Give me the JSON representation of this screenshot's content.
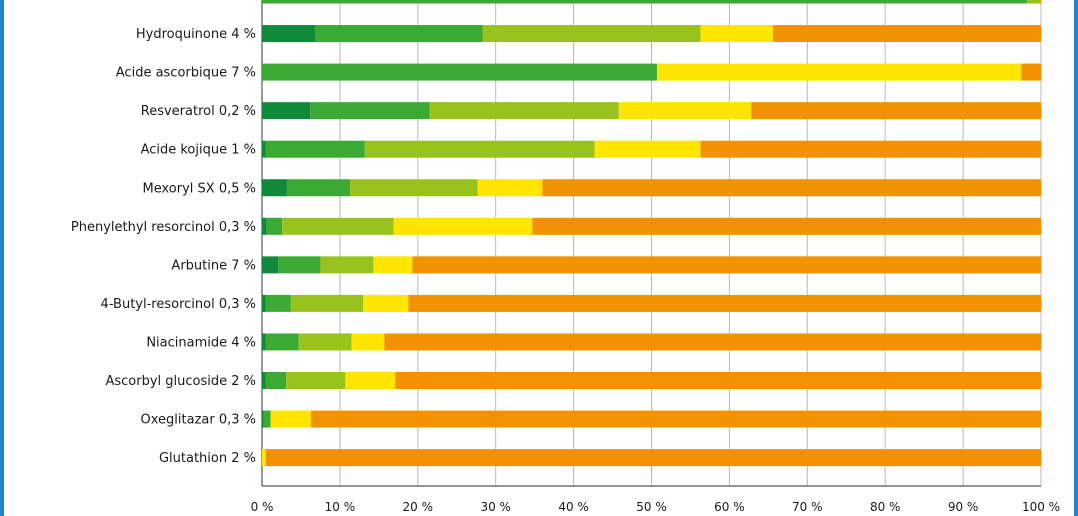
{
  "chart_data": {
    "type": "bar",
    "orientation": "horizontal",
    "stacked": true,
    "categories": [
      "",
      "Hydroquinone 4 %",
      "Acide ascorbique 7 %",
      "Resveratrol 0,2 %",
      "Acide kojique 1 %",
      "Mexoryl SX 0,5 %",
      "Phenylethyl resorcinol 0,3 %",
      "Arbutine 7 %",
      "4-Butyl-resorcinol 0,3 %",
      "Niacinamide 4 %",
      "Ascorbyl glucoside 2 %",
      "Oxeglitazar 0,3 %",
      "Glutathion 2 %"
    ],
    "series": [
      {
        "color": "#0f8a3a",
        "values": [
          0,
          6.8,
          0,
          6.2,
          0.5,
          3.2,
          0.6,
          2.1,
          0.5,
          0.5,
          0.5,
          0.2,
          0
        ]
      },
      {
        "color": "#3aaa35",
        "values": [
          98.2,
          21.5,
          50.7,
          15.3,
          12.7,
          8.1,
          2,
          5.4,
          3.2,
          4.2,
          2.6,
          0.9,
          0
        ]
      },
      {
        "color": "#97c31c",
        "values": [
          1.6,
          28,
          0,
          24.3,
          29.5,
          16.4,
          14.3,
          6.8,
          9.3,
          6.8,
          7.6,
          0,
          0
        ]
      },
      {
        "color": "#ffe500",
        "values": [
          0,
          9.3,
          46.8,
          17,
          13.6,
          8.3,
          17.8,
          5,
          5.8,
          4.2,
          6.4,
          5.2,
          0.5
        ]
      },
      {
        "color": "#f39200",
        "values": [
          0.2,
          34.4,
          2.5,
          37.2,
          43.7,
          64,
          65.3,
          80.7,
          81.2,
          84.3,
          82.9,
          93.7,
          99.5
        ]
      }
    ],
    "x_ticks": [
      "0 %",
      "10 %",
      "20 %",
      "30 %",
      "40 %",
      "50 %",
      "60 %",
      "70 %",
      "80 %",
      "90 %",
      "100 %"
    ],
    "xlim": [
      0,
      100
    ],
    "grid": true,
    "title": "",
    "xlabel": "",
    "ylabel": ""
  }
}
